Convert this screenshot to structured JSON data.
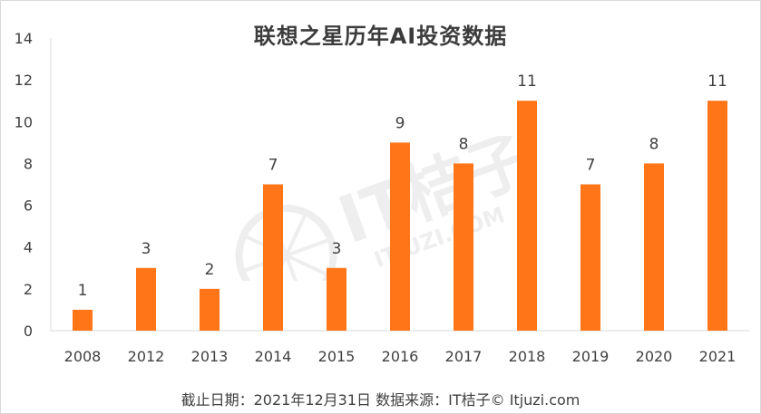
{
  "chart_data": {
    "type": "bar",
    "title": "联想之星历年AI投资数据",
    "categories": [
      "2008",
      "2012",
      "2013",
      "2014",
      "2015",
      "2016",
      "2017",
      "2018",
      "2019",
      "2020",
      "2021"
    ],
    "series": [
      {
        "values": [
          1,
          3,
          2,
          7,
          3,
          9,
          8,
          11,
          7,
          8,
          11
        ]
      }
    ],
    "ylim": [
      0,
      14
    ],
    "yticks": [
      0,
      2,
      4,
      6,
      8,
      10,
      12,
      14
    ],
    "xlabel": "",
    "ylabel": "",
    "grid": false,
    "bar_color": "#ff7518",
    "data_labels": true
  },
  "footer": "截止日期：2021年12月31日    数据来源：IT桔子© Itjuzi.com",
  "watermark": {
    "main": "IT桔子",
    "sub": "ITJUZI.COM"
  }
}
